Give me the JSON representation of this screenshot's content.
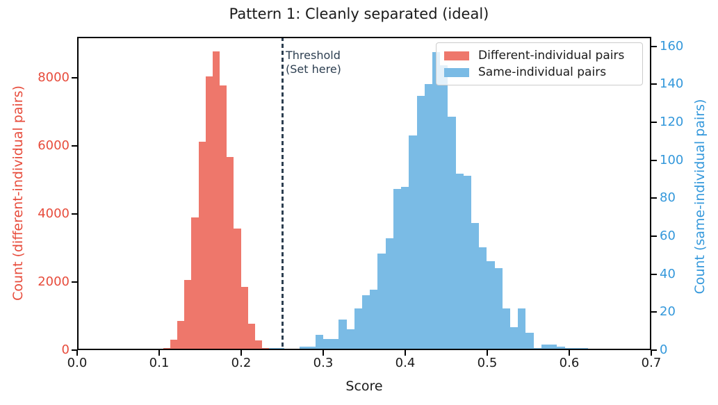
{
  "title": "Pattern 1: Cleanly separated (ideal)",
  "legend": {
    "items": [
      {
        "label": "Different-individual pairs",
        "color": "#ee776b"
      },
      {
        "label": "Same-individual pairs",
        "color": "#7abbe5"
      }
    ]
  },
  "threshold": {
    "x": 0.25,
    "line_color": "#2c3e50",
    "label_line1": "Threshold",
    "label_line2": "(Set here)"
  },
  "chart_data": {
    "type": "bar",
    "subtype": "dual-axis-histogram",
    "title": "Pattern 1: Cleanly separated (ideal)",
    "xlabel": "Score",
    "x_range": [
      0.0,
      0.7
    ],
    "x_ticks": [
      "0.0",
      "0.1",
      "0.2",
      "0.3",
      "0.4",
      "0.5",
      "0.6",
      "0.7"
    ],
    "grid": false,
    "legend_position": "upper right",
    "series": [
      {
        "name": "Different-individual pairs",
        "axis": "left",
        "color": "#ee776b",
        "label_color": "#e74c3c",
        "ylabel": "Count (different-individual pairs)",
        "ylim": [
          0,
          9198
        ],
        "yticks": [
          0,
          2000,
          4000,
          6000,
          8000
        ],
        "bin_start": 0.105,
        "bin_width": 0.0086,
        "counts": [
          70,
          305,
          860,
          2050,
          3890,
          6110,
          8030,
          8760,
          7780,
          5680,
          3560,
          1850,
          780,
          280,
          60
        ]
      },
      {
        "name": "Same-individual pairs",
        "axis": "right",
        "color": "#7abbe5",
        "label_color": "#3498db",
        "ylabel": "Count (same-individual pairs)",
        "ylim": [
          0,
          165
        ],
        "yticks": [
          0,
          20,
          40,
          60,
          80,
          100,
          120,
          140,
          160
        ],
        "bin_start": 0.2335,
        "bin_width": 0.0095,
        "counts": [
          1,
          1,
          0,
          0,
          2,
          2,
          8,
          6,
          6,
          16,
          11,
          22,
          29,
          32,
          51,
          59,
          85,
          86,
          113,
          134,
          140,
          157,
          150,
          123,
          93,
          92,
          67,
          54,
          47,
          43,
          22,
          12,
          22,
          9,
          1,
          3,
          3,
          2,
          1,
          1,
          1,
          0
        ]
      }
    ],
    "annotation": {
      "text_line1": "Threshold",
      "text_line2": "(Set here)",
      "x": 0.25,
      "color": "#2c3e50",
      "line_style": "dashed"
    }
  }
}
